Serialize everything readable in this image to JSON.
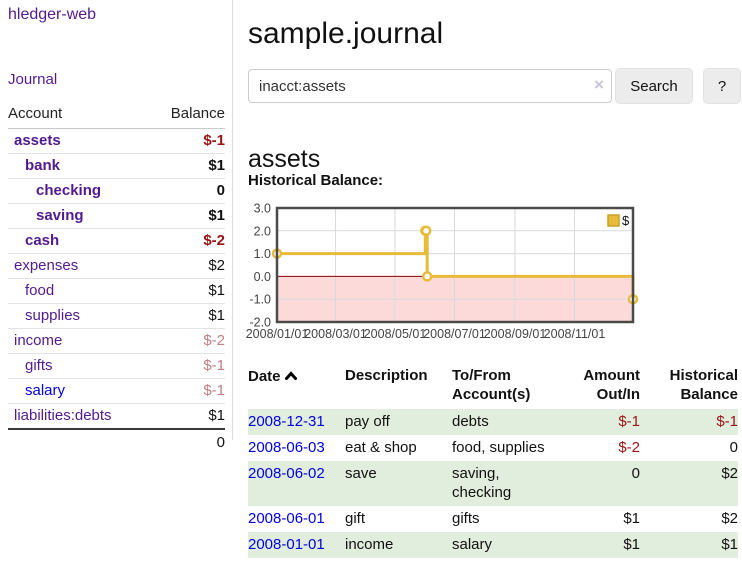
{
  "colors": {
    "purple_link": "#521a8f",
    "blue_link": "#0000e0",
    "negative": "#991414",
    "negative_muted": "#c07f83",
    "row_green": "#e2eedd",
    "series_gold": "#e8bb3a"
  },
  "sidebar": {
    "brand": "hledger-web",
    "journal_link": "Journal",
    "accounts_table": {
      "headers": {
        "account": "Account",
        "balance": "Balance"
      },
      "rows": [
        {
          "account": "assets",
          "indent": 0,
          "bold": true,
          "balance": "$-1",
          "balance_style": "neg"
        },
        {
          "account": "bank",
          "indent": 1,
          "bold": true,
          "balance": "$1",
          "balance_style": "pos"
        },
        {
          "account": "checking",
          "indent": 2,
          "bold": true,
          "balance": "0",
          "balance_style": "pos"
        },
        {
          "account": "saving",
          "indent": 2,
          "bold": true,
          "balance": "$1",
          "balance_style": "pos"
        },
        {
          "account": "cash",
          "indent": 1,
          "bold": true,
          "balance": "$-2",
          "balance_style": "neg"
        },
        {
          "account": "expenses",
          "indent": 0,
          "bold": false,
          "balance": "$2",
          "balance_style": "pos"
        },
        {
          "account": "food",
          "indent": 1,
          "bold": false,
          "balance": "$1",
          "balance_style": "pos"
        },
        {
          "account": "supplies",
          "indent": 1,
          "bold": false,
          "balance": "$1",
          "balance_style": "pos"
        },
        {
          "account": "income",
          "indent": 0,
          "bold": false,
          "balance": "$-2",
          "balance_style": "neg-muted"
        },
        {
          "account": "gifts",
          "indent": 1,
          "bold": false,
          "balance": "$-1",
          "balance_style": "neg-muted"
        },
        {
          "account": "salary",
          "indent": 1,
          "bold": false,
          "balance": "$-1",
          "balance_style": "neg-muted",
          "link_color": "blue"
        },
        {
          "account": "liabilities:debts",
          "indent": 0,
          "bold": false,
          "balance": "$1",
          "balance_style": "pos"
        }
      ],
      "total": "0"
    }
  },
  "header": {
    "title": "sample.journal"
  },
  "search": {
    "value": "inacct:assets",
    "clear_icon": "×",
    "button_label": "Search",
    "help_label": "?"
  },
  "account_page": {
    "heading": "assets",
    "chart_heading": "Historical Balance:"
  },
  "chart_data": {
    "type": "line",
    "step": true,
    "title": "Historical Balance",
    "series": [
      {
        "name": "$",
        "color": "#e8bb3a",
        "points": [
          [
            "2008-01-01",
            1
          ],
          [
            "2008-06-01",
            2
          ],
          [
            "2008-06-02",
            2
          ],
          [
            "2008-06-03",
            0
          ],
          [
            "2008-12-31",
            -1
          ]
        ]
      }
    ],
    "xlim": [
      "2008-01-01",
      "2008-12-31"
    ],
    "ylim": [
      -2,
      3
    ],
    "y_ticks": [
      "3.0",
      "2.0",
      "1.0",
      "0.0",
      "-1.0",
      "-2.0"
    ],
    "x_ticks": [
      {
        "date": "2008-01-01",
        "label": "2008/01/01",
        "grid": false
      },
      {
        "date": "2008-03-01",
        "label": "2008/03/01",
        "grid": true
      },
      {
        "date": "2008-05-01",
        "label": "2008/05/01",
        "grid": true
      },
      {
        "date": "2008-07-01",
        "label": "2008/07/01",
        "grid": true
      },
      {
        "date": "2008-09-01",
        "label": "2008/09/01",
        "grid": true
      },
      {
        "date": "2008-11-01",
        "label": "2008/11/01",
        "grid": true
      }
    ],
    "grid": true,
    "negative_region_color": "#fcdada",
    "zero_line_color": "#8b0000",
    "legend": {
      "label": "$",
      "position": "top-right"
    }
  },
  "register": {
    "headers": {
      "date": "Date",
      "description": "Description",
      "tofrom": "To/From Account(s)",
      "amount": "Amount Out/In",
      "balance": "Historical Balance"
    },
    "rows": [
      {
        "date": "2008-12-31",
        "description": "pay off",
        "accounts": "debts",
        "amount": "$-1",
        "amount_style": "neg",
        "balance": "$-1",
        "balance_style": "neg"
      },
      {
        "date": "2008-06-03",
        "description": "eat & shop",
        "accounts": "food, supplies",
        "amount": "$-2",
        "amount_style": "neg",
        "balance": "0",
        "balance_style": "pos"
      },
      {
        "date": "2008-06-02",
        "description": "save",
        "accounts": "saving, checking",
        "amount": "0",
        "amount_style": "pos",
        "balance": "$2",
        "balance_style": "pos"
      },
      {
        "date": "2008-06-01",
        "description": "gift",
        "accounts": "gifts",
        "amount": "$1",
        "amount_style": "pos",
        "balance": "$2",
        "balance_style": "pos"
      },
      {
        "date": "2008-01-01",
        "description": "income",
        "accounts": "salary",
        "amount": "$1",
        "amount_style": "pos",
        "balance": "$1",
        "balance_style": "pos"
      }
    ]
  }
}
